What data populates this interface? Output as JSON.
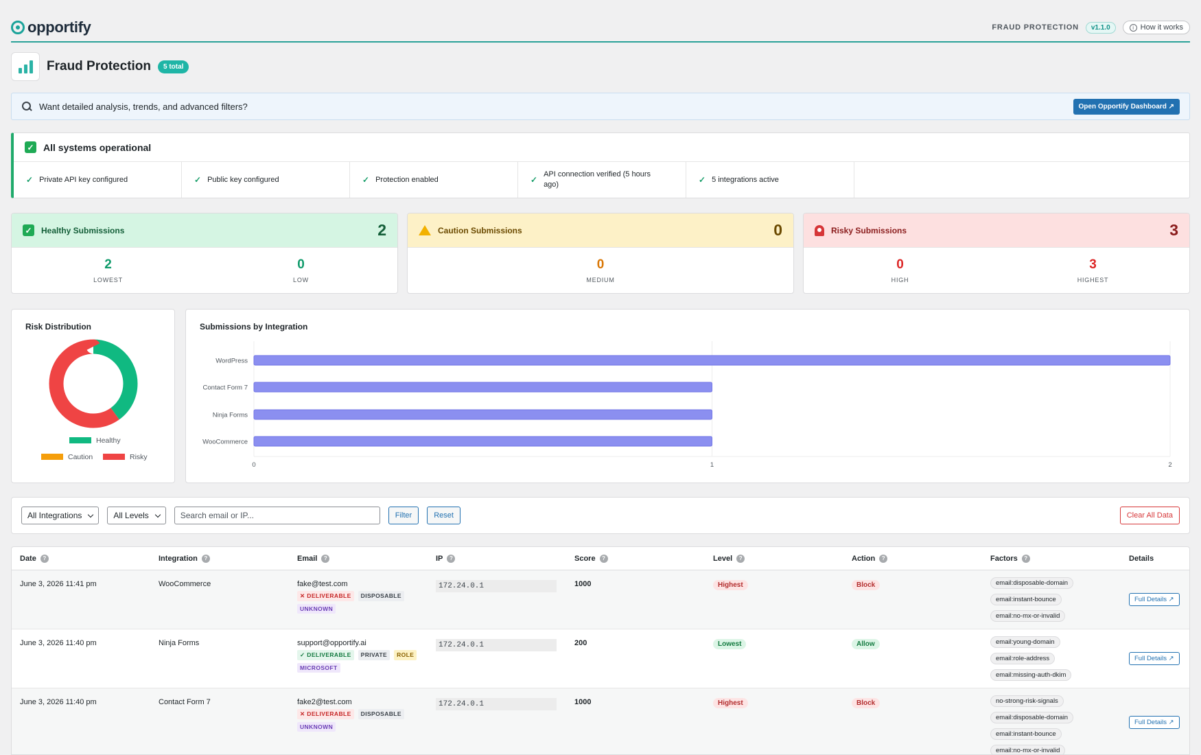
{
  "brand": {
    "name": "opportify"
  },
  "topbar": {
    "section_label": "FRAUD PROTECTION",
    "version": "v1.1.0",
    "how_label": "How it works"
  },
  "header": {
    "title": "Fraud Protection",
    "badge": "5 total"
  },
  "promo": {
    "text": "Want detailed analysis, trends, and advanced filters?",
    "button": "Open Opportify Dashboard ↗"
  },
  "status": {
    "title": "All systems operational",
    "items": [
      "Private API key configured",
      "Public key configured",
      "Protection enabled",
      "API connection verified (5 hours ago)",
      "5 integrations active"
    ]
  },
  "cards": {
    "healthy": {
      "title": "Healthy Submissions",
      "count": "2",
      "stats": [
        {
          "value": "2",
          "label": "LOWEST"
        },
        {
          "value": "0",
          "label": "LOW"
        }
      ]
    },
    "caution": {
      "title": "Caution Submissions",
      "count": "0",
      "stats": [
        {
          "value": "0",
          "label": "MEDIUM"
        }
      ]
    },
    "risky": {
      "title": "Risky Submissions",
      "count": "3",
      "stats": [
        {
          "value": "0",
          "label": "HIGH"
        },
        {
          "value": "3",
          "label": "HIGHEST"
        }
      ]
    }
  },
  "colors": {
    "healthy": "#10b981",
    "caution": "#f59e0b",
    "risky": "#ef4444",
    "bar": "#8b8ff0"
  },
  "chart_data": [
    {
      "type": "pie",
      "title": "Risk Distribution",
      "categories": [
        "Healthy",
        "Caution",
        "Risky"
      ],
      "values": [
        2,
        0,
        3
      ],
      "legend": "bottom"
    },
    {
      "type": "bar",
      "orientation": "horizontal",
      "title": "Submissions by Integration",
      "categories": [
        "WordPress",
        "Contact Form 7",
        "Ninja Forms",
        "WooCommerce"
      ],
      "values": [
        2,
        1,
        1,
        1
      ],
      "xlim": [
        0,
        2
      ],
      "ticks": [
        "0",
        "1",
        "2"
      ],
      "grid": true
    }
  ],
  "filters": {
    "integration": "All Integrations",
    "level": "All Levels",
    "search_placeholder": "Search email or IP...",
    "filter_btn": "Filter",
    "reset_btn": "Reset",
    "clear_btn": "Clear All Data"
  },
  "table": {
    "columns": [
      "Date",
      "Integration",
      "Email",
      "IP",
      "Score",
      "Level",
      "Action",
      "Factors",
      "Details"
    ],
    "rows": [
      {
        "date": "June 3, 2026 11:41 pm",
        "integration": "WooCommerce",
        "email": "fake@test.com",
        "tags": [
          {
            "text": "✕ DELIVERABLE",
            "style": "red"
          },
          {
            "text": "DISPOSABLE",
            "style": "gray"
          },
          {
            "text": "UNKNOWN",
            "style": "purple"
          }
        ],
        "ip": "172.24.0.1",
        "score": "1000",
        "level": "Highest",
        "action": "Block",
        "factors": [
          "email:disposable-domain",
          "email:instant-bounce",
          "email:no-mx-or-invalid"
        ],
        "details": "Full Details ↗"
      },
      {
        "date": "June 3, 2026 11:40 pm",
        "integration": "Ninja Forms",
        "email": "support@opportify.ai",
        "tags": [
          {
            "text": "✓ DELIVERABLE",
            "style": "green"
          },
          {
            "text": "PRIVATE",
            "style": "gray"
          },
          {
            "text": "ROLE",
            "style": "yellow"
          },
          {
            "text": "MICROSOFT",
            "style": "purple"
          }
        ],
        "ip": "172.24.0.1",
        "score": "200",
        "level": "Lowest",
        "action": "Allow",
        "factors": [
          "email:young-domain",
          "email:role-address",
          "email:missing-auth-dkim"
        ],
        "details": "Full Details ↗"
      },
      {
        "date": "June 3, 2026 11:40 pm",
        "integration": "Contact Form 7",
        "email": "fake2@test.com",
        "tags": [
          {
            "text": "✕ DELIVERABLE",
            "style": "red"
          },
          {
            "text": "DISPOSABLE",
            "style": "gray"
          },
          {
            "text": "UNKNOWN",
            "style": "purple"
          }
        ],
        "ip": "172.24.0.1",
        "score": "1000",
        "level": "Highest",
        "action": "Block",
        "factors": [
          "no-strong-risk-signals",
          "email:disposable-domain",
          "email:instant-bounce",
          "email:no-mx-or-invalid"
        ],
        "details": "Full Details ↗"
      }
    ]
  }
}
